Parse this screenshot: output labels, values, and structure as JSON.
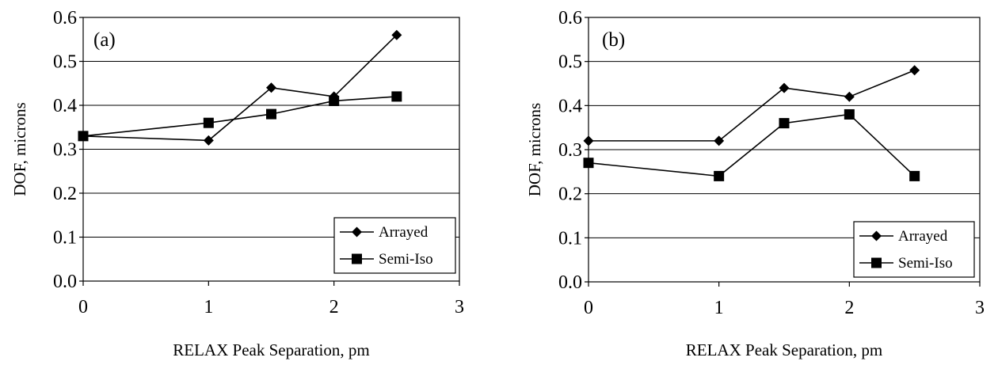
{
  "chart_data": [
    {
      "type": "line",
      "panel_label": "(a)",
      "xlabel": "RELAX Peak Separation, pm",
      "ylabel": "DOF, microns",
      "xlim": [
        0,
        3
      ],
      "ylim": [
        0,
        0.6
      ],
      "x_ticks": [
        "0",
        "1",
        "2",
        "3"
      ],
      "y_ticks": [
        "0.0",
        "0.1",
        "0.2",
        "0.3",
        "0.4",
        "0.5",
        "0.6"
      ],
      "grid": "horizontal",
      "legend_position": "bottom-right",
      "series": [
        {
          "name": "Arrayed",
          "marker": "diamond",
          "x": [
            0,
            1,
            1.5,
            2,
            2.5
          ],
          "y": [
            0.33,
            0.32,
            0.44,
            0.42,
            0.56
          ]
        },
        {
          "name": "Semi-Iso",
          "marker": "square",
          "x": [
            0,
            1,
            1.5,
            2,
            2.5
          ],
          "y": [
            0.33,
            0.36,
            0.38,
            0.41,
            0.42
          ]
        }
      ]
    },
    {
      "type": "line",
      "panel_label": "(b)",
      "xlabel": "RELAX Peak Separation, pm",
      "ylabel": "DOF, microns",
      "xlim": [
        0,
        3
      ],
      "ylim": [
        0,
        0.6
      ],
      "x_ticks": [
        "0",
        "1",
        "2",
        "3"
      ],
      "y_ticks": [
        "0.0",
        "0.1",
        "0.2",
        "0.3",
        "0.4",
        "0.5",
        "0.6"
      ],
      "grid": "horizontal",
      "legend_position": "bottom-right",
      "series": [
        {
          "name": "Arrayed",
          "marker": "diamond",
          "x": [
            0,
            1,
            1.5,
            2,
            2.5
          ],
          "y": [
            0.32,
            0.32,
            0.44,
            0.42,
            0.48
          ]
        },
        {
          "name": "Semi-Iso",
          "marker": "square",
          "x": [
            0,
            1,
            1.5,
            2,
            2.5
          ],
          "y": [
            0.27,
            0.24,
            0.36,
            0.38,
            0.24
          ]
        }
      ]
    }
  ]
}
